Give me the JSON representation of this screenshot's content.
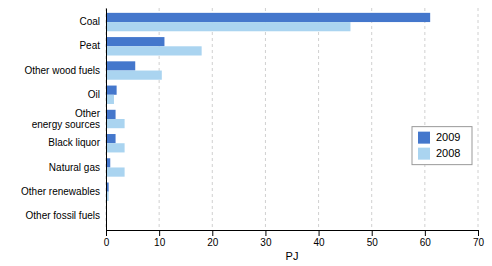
{
  "chart_data": {
    "type": "bar",
    "orientation": "horizontal",
    "categories": [
      "Other fossil fuels",
      "Other renewables",
      "Natural gas",
      "Black liquor",
      "Other\nenergy sources",
      "Oil",
      "Other wood fuels",
      "Peat",
      "Coal"
    ],
    "series": [
      {
        "name": "2009",
        "color": "#4477cc",
        "values": [
          0.1,
          0.5,
          0.8,
          1.8,
          1.8,
          2.0,
          5.5,
          11.0,
          61.0
        ]
      },
      {
        "name": "2008",
        "color": "#aad4f0",
        "values": [
          0.1,
          0.5,
          3.5,
          3.5,
          3.5,
          1.5,
          10.5,
          18.0,
          46.0
        ]
      }
    ],
    "xlim": [
      0,
      70
    ],
    "xticks": [
      0,
      10,
      20,
      30,
      40,
      50,
      60,
      70
    ],
    "xlabel": "PJ",
    "grid": true,
    "legend": "right"
  }
}
